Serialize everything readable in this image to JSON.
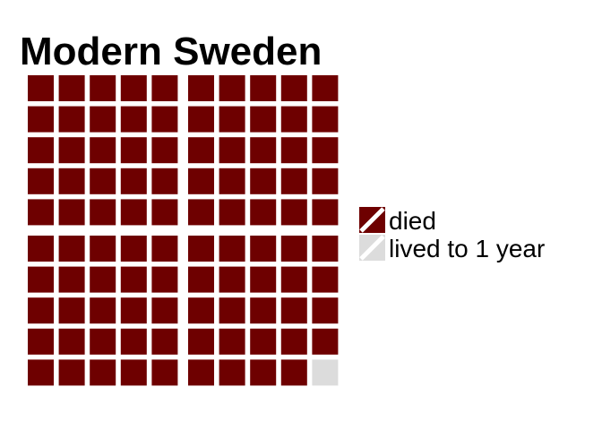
{
  "chart_data": {
    "type": "waffle",
    "title": "Modern Sweden",
    "rows": 10,
    "cols": 10,
    "total": 100,
    "series": [
      {
        "name": "died",
        "count": 99,
        "color": "#6E0000"
      },
      {
        "name": "lived to 1 year",
        "count": 1,
        "color": "#DCDCDC"
      }
    ],
    "legend": "right"
  }
}
